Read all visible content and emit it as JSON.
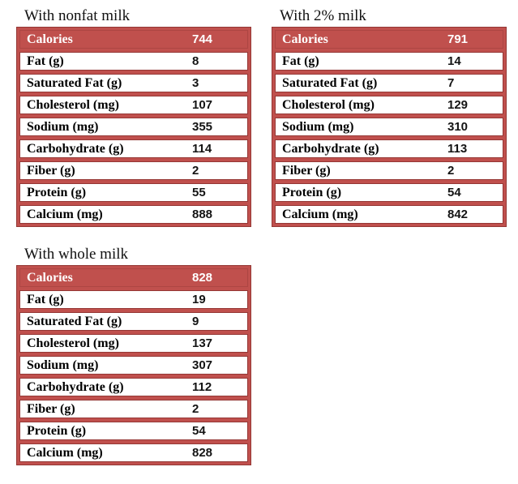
{
  "colors": {
    "table_accent": "#c0504d",
    "cell_border": "#953735",
    "header_text": "#ffffff",
    "body_text": "#000000",
    "page_background": "#ffffff"
  },
  "chart_data": [
    {
      "type": "table",
      "title": "With nonfat milk",
      "rows": [
        {
          "label": "Calories",
          "value": 744
        },
        {
          "label": "Fat (g)",
          "value": 8
        },
        {
          "label": "Saturated Fat (g)",
          "value": 3
        },
        {
          "label": "Cholesterol (mg)",
          "value": 107
        },
        {
          "label": "Sodium (mg)",
          "value": 355
        },
        {
          "label": "Carbohydrate (g)",
          "value": 114
        },
        {
          "label": "Fiber (g)",
          "value": 2
        },
        {
          "label": "Protein (g)",
          "value": 55
        },
        {
          "label": "Calcium (mg)",
          "value": 888
        }
      ]
    },
    {
      "type": "table",
      "title": "With 2% milk",
      "rows": [
        {
          "label": "Calories",
          "value": 791
        },
        {
          "label": "Fat (g)",
          "value": 14
        },
        {
          "label": "Saturated Fat (g)",
          "value": 7
        },
        {
          "label": "Cholesterol (mg)",
          "value": 129
        },
        {
          "label": "Sodium (mg)",
          "value": 310
        },
        {
          "label": "Carbohydrate (g)",
          "value": 113
        },
        {
          "label": "Fiber (g)",
          "value": 2
        },
        {
          "label": "Protein (g)",
          "value": 54
        },
        {
          "label": "Calcium (mg)",
          "value": 842
        }
      ]
    },
    {
      "type": "table",
      "title": "With whole milk",
      "rows": [
        {
          "label": "Calories",
          "value": 828
        },
        {
          "label": "Fat (g)",
          "value": 19
        },
        {
          "label": "Saturated Fat (g)",
          "value": 9
        },
        {
          "label": "Cholesterol (mg)",
          "value": 137
        },
        {
          "label": "Sodium (mg)",
          "value": 307
        },
        {
          "label": "Carbohydrate (g)",
          "value": 112
        },
        {
          "label": "Fiber (g)",
          "value": 2
        },
        {
          "label": "Protein (g)",
          "value": 54
        },
        {
          "label": "Calcium (mg)",
          "value": 828
        }
      ]
    }
  ]
}
